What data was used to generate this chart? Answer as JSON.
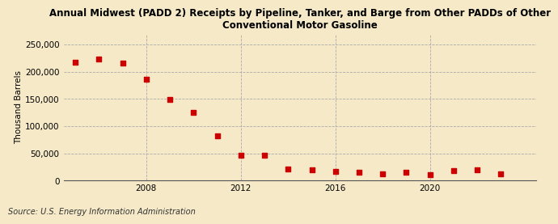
{
  "title": "Annual Midwest (PADD 2) Receipts by Pipeline, Tanker, and Barge from Other PADDs of Other\nConventional Motor Gasoline",
  "ylabel": "Thousand Barrels",
  "source": "Source: U.S. Energy Information Administration",
  "background_color": "#f5e9c8",
  "marker_color": "#cc0000",
  "years": [
    2005,
    2006,
    2007,
    2008,
    2009,
    2010,
    2011,
    2012,
    2013,
    2014,
    2015,
    2016,
    2017,
    2018,
    2019,
    2020,
    2021,
    2022,
    2023
  ],
  "values": [
    218000,
    223000,
    216000,
    186000,
    149000,
    125000,
    83000,
    47000,
    47000,
    22000,
    20000,
    17000,
    15000,
    13000,
    15000,
    11000,
    18000,
    20000,
    13000
  ],
  "ylim": [
    0,
    270000
  ],
  "yticks": [
    0,
    50000,
    100000,
    150000,
    200000,
    250000
  ],
  "xtick_positions": [
    2008,
    2012,
    2016,
    2020
  ],
  "xtick_labels": [
    "2008",
    "2012",
    "2016",
    "2020"
  ],
  "xlim": [
    2004.5,
    2024.5
  ],
  "grid_color": "#aaaaaa",
  "title_fontsize": 8.5,
  "axis_fontsize": 7.5,
  "source_fontsize": 7
}
